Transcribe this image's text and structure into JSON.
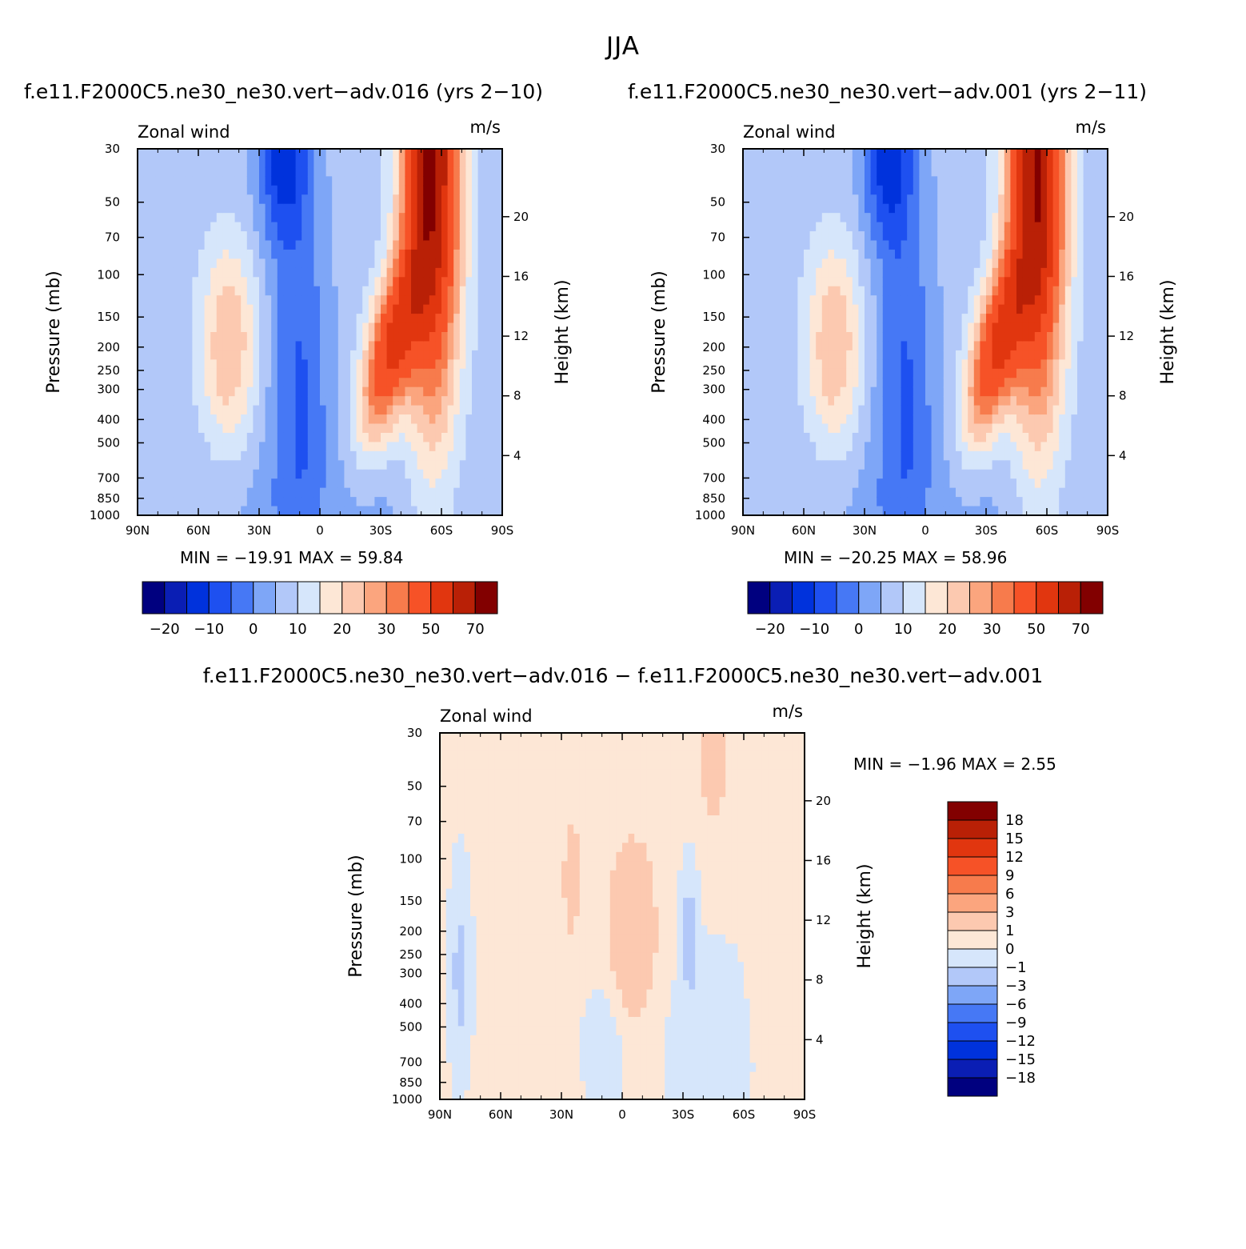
{
  "figure": {
    "title": "JJA",
    "diff_title": "f.e11.F2000C5.ne30_ne30.vert−adv.016 − f.e11.F2000C5.ne30_ne30.vert−adv.001"
  },
  "colors": {
    "full_palette": [
      "#00007f",
      "#0a1eb4",
      "#0032dc",
      "#1e50f0",
      "#4678f5",
      "#7ea6f7",
      "#b2c8f9",
      "#d6e6fb",
      "#fde7d6",
      "#fcc9b0",
      "#fba57e",
      "#f77b4c",
      "#f65227",
      "#e1360f",
      "#b92006",
      "#820000"
    ],
    "diff_palette": [
      "#00007f",
      "#0a1eb4",
      "#0032dc",
      "#1e50f0",
      "#4678f5",
      "#7ea6f7",
      "#b2c8f9",
      "#d6e6fb",
      "#fde7d6",
      "#fcc9b0",
      "#fba57e",
      "#f77b4c",
      "#f65227",
      "#e1360f",
      "#b92006",
      "#820000"
    ]
  },
  "chart_data": [
    {
      "type": "heatmap",
      "panel_title": "f.e11.F2000C5.ne30_ne30.vert−adv.016 (yrs 2−10)",
      "left_label": "Zonal wind",
      "right_label": "m/s",
      "ylabel": "Pressure (mb)",
      "ylabel_right": "Height (km)",
      "x_ticks": [
        "90N",
        "60N",
        "30N",
        "0",
        "30S",
        "60S",
        "90S"
      ],
      "y_ticks": [
        "30",
        "50",
        "70",
        "100",
        "150",
        "200",
        "250",
        "300",
        "400",
        "500",
        "700",
        "850",
        "1000"
      ],
      "y_ticks_right": [
        "20",
        "16",
        "12",
        "8",
        "4"
      ],
      "x_range": [
        90,
        -90
      ],
      "y_range_mb": [
        1000,
        30
      ],
      "y_scale": "log",
      "min_text": "MIN = −19.91   MAX =   59.84",
      "min": -19.91,
      "max": 59.84,
      "jet": {
        "lat": -55,
        "p_mb": 30,
        "value": 59.84
      },
      "trough": {
        "lat": 20,
        "p_mb": 30,
        "value": -19.91
      },
      "nh_jet": {
        "lat": 45,
        "p_mb": 200,
        "value": 20
      },
      "colorbar": {
        "labels": [
          "−20",
          "−10",
          "0",
          "10",
          "20",
          "30",
          "50",
          "70"
        ],
        "levels": [
          -25,
          -20,
          -15,
          -10,
          -5,
          0,
          5,
          10,
          15,
          20,
          25,
          30,
          40,
          50,
          60,
          70
        ]
      }
    },
    {
      "type": "heatmap",
      "panel_title": "f.e11.F2000C5.ne30_ne30.vert−adv.001 (yrs 2−11)",
      "left_label": "Zonal wind",
      "right_label": "m/s",
      "ylabel": "Pressure (mb)",
      "ylabel_right": "Height (km)",
      "x_ticks": [
        "90N",
        "60N",
        "30N",
        "0",
        "30S",
        "60S",
        "90S"
      ],
      "y_ticks": [
        "30",
        "50",
        "70",
        "100",
        "150",
        "200",
        "250",
        "300",
        "400",
        "500",
        "700",
        "850",
        "1000"
      ],
      "y_ticks_right": [
        "20",
        "16",
        "12",
        "8",
        "4"
      ],
      "x_range": [
        90,
        -90
      ],
      "y_range_mb": [
        1000,
        30
      ],
      "y_scale": "log",
      "min_text": "MIN = −20.25   MAX =   58.96",
      "min": -20.25,
      "max": 58.96,
      "jet": {
        "lat": -55,
        "p_mb": 30,
        "value": 58.96
      },
      "trough": {
        "lat": 20,
        "p_mb": 30,
        "value": -20.25
      },
      "nh_jet": {
        "lat": 45,
        "p_mb": 200,
        "value": 20
      },
      "colorbar": {
        "labels": [
          "−20",
          "−10",
          "0",
          "10",
          "20",
          "30",
          "50",
          "70"
        ],
        "levels": [
          -25,
          -20,
          -15,
          -10,
          -5,
          0,
          5,
          10,
          15,
          20,
          25,
          30,
          40,
          50,
          60,
          70
        ]
      }
    },
    {
      "type": "heatmap",
      "panel_title": "",
      "left_label": "Zonal wind",
      "right_label": "m/s",
      "ylabel": "Pressure (mb)",
      "ylabel_right": "Height (km)",
      "x_ticks": [
        "90N",
        "60N",
        "30N",
        "0",
        "30S",
        "60S",
        "90S"
      ],
      "y_ticks": [
        "30",
        "50",
        "70",
        "100",
        "150",
        "200",
        "250",
        "300",
        "400",
        "500",
        "700",
        "850",
        "1000"
      ],
      "y_ticks_right": [
        "20",
        "16",
        "12",
        "8",
        "4"
      ],
      "x_range": [
        90,
        -90
      ],
      "y_range_mb": [
        1000,
        30
      ],
      "y_scale": "log",
      "min_text": "MIN =    −1.96   MAX =    2.55",
      "min": -1.96,
      "max": 2.55,
      "colorbar": {
        "labels": [
          "18",
          "15",
          "12",
          "9",
          "6",
          "3",
          "1",
          "0",
          "−1",
          "−3",
          "−6",
          "−9",
          "−12",
          "−15",
          "−18"
        ],
        "levels": [
          -18,
          -15,
          -12,
          -9,
          -6,
          -3,
          -1,
          0,
          1,
          3,
          6,
          9,
          12,
          15,
          18
        ]
      }
    }
  ]
}
